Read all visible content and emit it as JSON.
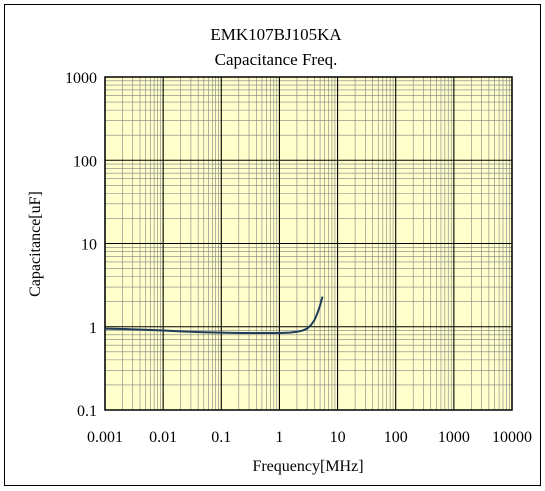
{
  "chart_data": {
    "type": "line",
    "title": "EMK107BJ105KA",
    "subtitle": "Capacitance Freq.",
    "xlabel": "Frequency[MHz]",
    "ylabel": "Capacitance[uF]",
    "x_scale": "log",
    "y_scale": "log",
    "xlim": [
      0.001,
      10000
    ],
    "ylim": [
      0.1,
      1000
    ],
    "x_ticks": [
      "0.001",
      "0.01",
      "0.1",
      "1",
      "10",
      "100",
      "1000",
      "10000"
    ],
    "y_ticks": [
      "1000",
      "100",
      "10",
      "1",
      "0.1"
    ],
    "grid": true,
    "legend": "none",
    "series": [
      {
        "x": [
          0.001,
          0.002,
          0.005,
          0.01,
          0.02,
          0.05,
          0.1,
          0.2,
          0.5,
          1,
          1.5,
          2,
          2.5,
          3,
          3.5,
          4,
          4.5,
          5,
          5.5
        ],
        "y": [
          0.95,
          0.94,
          0.92,
          0.9,
          0.88,
          0.86,
          0.85,
          0.84,
          0.84,
          0.84,
          0.85,
          0.87,
          0.9,
          0.95,
          1.05,
          1.2,
          1.45,
          1.8,
          2.3
        ]
      }
    ]
  },
  "colors": {
    "plot_background": "#FFFFCC",
    "grid_major": "#000000",
    "grid_minor": "#808080",
    "series_line": "#1F3D5A",
    "frame": "#000000"
  }
}
